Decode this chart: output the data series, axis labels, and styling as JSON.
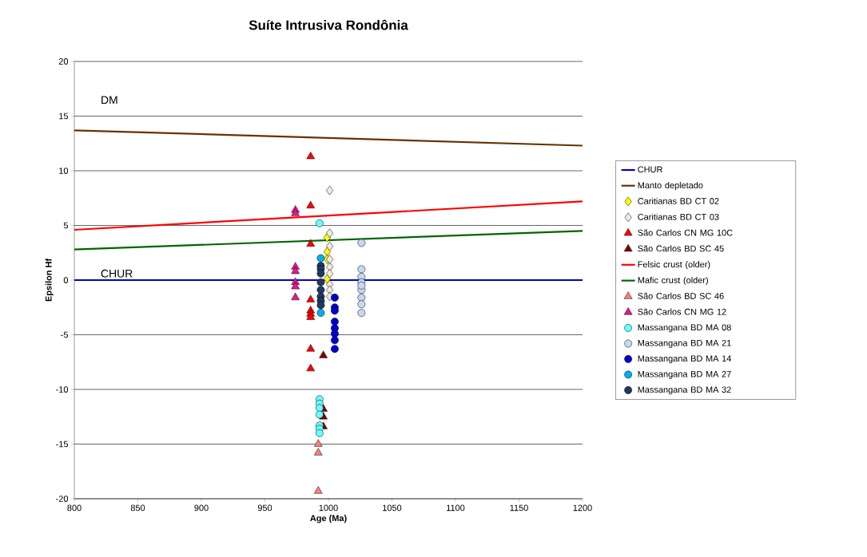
{
  "chart_data": {
    "type": "scatter",
    "title": "Suíte Intrusiva Rondônia",
    "xlabel": "Age (Ma)",
    "ylabel": "Epsilon Hf",
    "xlim": [
      800,
      1200
    ],
    "ylim": [
      -20,
      20
    ],
    "xticks": [
      800,
      850,
      900,
      950,
      1000,
      1050,
      1100,
      1150,
      1200
    ],
    "yticks": [
      -20,
      -15,
      -10,
      -5,
      0,
      5,
      10,
      15,
      20
    ],
    "grid": "y",
    "legend": "right",
    "annotations": [
      "DM",
      "CHUR"
    ],
    "series": [
      {
        "name": "CHUR",
        "type": "line",
        "color": "#0000cc",
        "x": [
          800,
          1200
        ],
        "values": [
          0,
          0
        ]
      },
      {
        "name": "Manto depletado",
        "type": "line",
        "color": "#663300",
        "x": [
          800,
          1200
        ],
        "values": [
          13.7,
          12.3
        ]
      },
      {
        "name": "Caritianas BD CT 02",
        "marker": "diamond",
        "color": "#ffff00",
        "x": [
          999,
          999,
          999,
          999
        ],
        "values": [
          3.9,
          2.6,
          1.9,
          0.1
        ]
      },
      {
        "name": "Caritianas BD CT 03",
        "marker": "diamond",
        "color": "#eeece1",
        "x": [
          1001,
          1001,
          1001,
          1001,
          1001,
          1001,
          1001,
          1001,
          1001
        ],
        "values": [
          8.2,
          4.3,
          3.1,
          1.2,
          0.6,
          -0.4,
          -0.9,
          -1.5,
          1.9
        ]
      },
      {
        "name": "São Carlos CN MG 10C",
        "marker": "triangle",
        "color": "#ff0000",
        "x": [
          986,
          986,
          986,
          986,
          986,
          986,
          986,
          986,
          986
        ],
        "values": [
          11.3,
          6.8,
          3.3,
          -1.8,
          -2.8,
          -3.1,
          -3.4,
          -6.3,
          -8.1
        ]
      },
      {
        "name": "São Carlos BD SC 45",
        "marker": "triangle",
        "color": "#800000",
        "x": [
          996,
          996,
          996,
          996
        ],
        "values": [
          -6.9,
          -11.8,
          -12.5,
          -13.4
        ]
      },
      {
        "name": "Felsic crust (older)",
        "type": "line",
        "color": "#ff0000",
        "x": [
          800,
          1200
        ],
        "values": [
          4.6,
          7.2
        ]
      },
      {
        "name": "Mafic crust (older)",
        "type": "line",
        "color": "#006600",
        "x": [
          800,
          1200
        ],
        "values": [
          2.8,
          4.5
        ]
      },
      {
        "name": "São Carlos BD SC 46",
        "marker": "triangle",
        "color": "#ff8080",
        "x": [
          992,
          992,
          992
        ],
        "values": [
          -15.0,
          -15.8,
          -19.3
        ]
      },
      {
        "name": "São Carlos CN MG 12",
        "marker": "triangle",
        "color": "#e6178c",
        "x": [
          974,
          974,
          974,
          974,
          974,
          974,
          974
        ],
        "values": [
          6.4,
          6.1,
          1.2,
          0.8,
          -0.2,
          -0.6,
          -1.6
        ]
      },
      {
        "name": "Massangana BD MA 08",
        "marker": "circle",
        "color": "#66ffff",
        "x": [
          993,
          993,
          993,
          993,
          993,
          993,
          993,
          993
        ],
        "values": [
          5.2,
          -10.9,
          -11.3,
          -11.7,
          -12.3,
          -13.3,
          -13.6,
          -14.0
        ]
      },
      {
        "name": "Massangana BD MA 21",
        "marker": "circle",
        "color": "#c6d9f1",
        "x": [
          1026,
          1026,
          1026,
          1026,
          1026,
          1026,
          1026,
          1026,
          1026
        ],
        "values": [
          3.4,
          1.0,
          0.3,
          -0.2,
          -0.9,
          -1.6,
          -2.2,
          -3.0,
          -0.5
        ]
      },
      {
        "name": "Massangana BD MA 14",
        "marker": "circle",
        "color": "#0000cc",
        "x": [
          1005,
          1005,
          1005,
          1005,
          1005,
          1005,
          1005,
          1005
        ],
        "values": [
          -1.6,
          -2.5,
          -2.8,
          -3.8,
          -4.4,
          -4.9,
          -5.5,
          -6.3
        ]
      },
      {
        "name": "Massangana BD MA 27",
        "marker": "circle",
        "color": "#00b0f0",
        "x": [
          994,
          994
        ],
        "values": [
          2.0,
          -3.0
        ]
      },
      {
        "name": "Massangana BD MA 32",
        "marker": "circle",
        "color": "#1f3864",
        "x": [
          994,
          994,
          994,
          994,
          994,
          994,
          994,
          994
        ],
        "values": [
          1.3,
          1.0,
          0.6,
          -0.2,
          -0.9,
          -1.5,
          -1.9,
          -2.3
        ]
      }
    ]
  }
}
